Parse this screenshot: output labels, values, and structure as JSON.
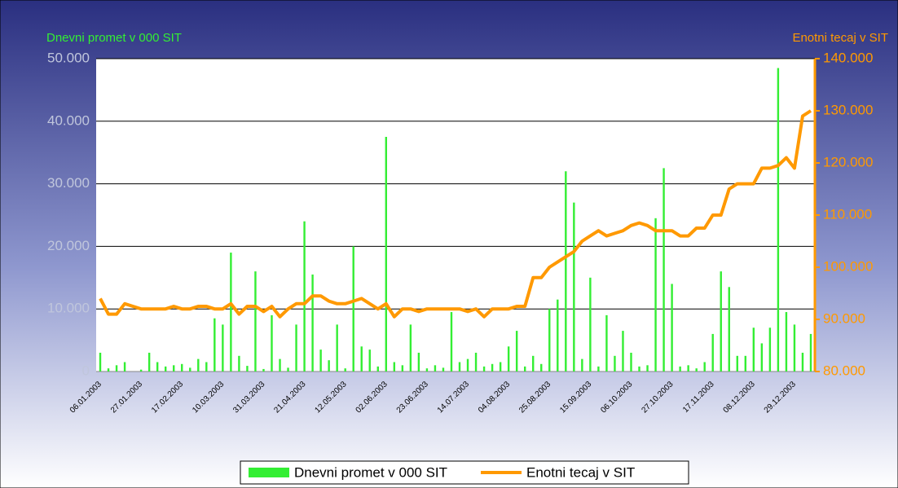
{
  "chart_data": {
    "type": "bar",
    "y_title": "Dnevni promet v 000 SIT",
    "y2_title": "Enotni tecaj v SIT",
    "categories": [
      "06.01.2003",
      null,
      null,
      null,
      null,
      "27.01.2003",
      null,
      null,
      null,
      null,
      "17.02.2003",
      null,
      null,
      null,
      null,
      "10.03.2003",
      null,
      null,
      null,
      null,
      "31.03.2003",
      null,
      null,
      null,
      null,
      "21.04.2003",
      null,
      null,
      null,
      null,
      "12.05.2003",
      null,
      null,
      null,
      null,
      "02.06.2003",
      null,
      null,
      null,
      null,
      "23.06.2003",
      null,
      null,
      null,
      null,
      "14.07.2003",
      null,
      null,
      null,
      null,
      "04.08.2003",
      null,
      null,
      null,
      null,
      "25.08.2003",
      null,
      null,
      null,
      null,
      "15.09.2003",
      null,
      null,
      null,
      null,
      "06.10.2003",
      null,
      null,
      null,
      null,
      "27.10.2003",
      null,
      null,
      null,
      null,
      "17.11.2003",
      null,
      null,
      null,
      null,
      "08.12.2003",
      null,
      null,
      null,
      null,
      "29.12.2003",
      null,
      null
    ],
    "series": [
      {
        "name": "Dnevni promet v 000 SIT",
        "type": "bar",
        "color": "#33ee33",
        "values": [
          3000,
          500,
          1000,
          1500,
          0,
          300,
          3000,
          1500,
          800,
          1000,
          1200,
          600,
          2000,
          1500,
          8500,
          7500,
          19000,
          2500,
          900,
          16000,
          400,
          9000,
          2000,
          600,
          7500,
          24000,
          15500,
          3500,
          1800,
          7500,
          500,
          20000,
          4000,
          3500,
          800,
          37500,
          1500,
          1000,
          7500,
          3000,
          500,
          1000,
          600,
          9500,
          1500,
          2000,
          3000,
          800,
          1200,
          1500,
          4000,
          6500,
          800,
          2500,
          1200,
          10000,
          11500,
          32000,
          27000,
          2000,
          15000,
          800,
          9000,
          2500,
          6500,
          3000,
          800,
          1000,
          24500,
          32500,
          14000,
          800,
          1000,
          500,
          1500,
          6000,
          16000,
          13500,
          2500,
          2500,
          7000,
          4500,
          7000,
          48500,
          9500,
          7500,
          3000,
          6000
        ]
      },
      {
        "name": "Enotni tecaj v SIT",
        "type": "line",
        "axis": "y2",
        "color": "#ff9900",
        "values": [
          94000,
          91000,
          91000,
          93000,
          92500,
          92000,
          92000,
          92000,
          92000,
          92500,
          92000,
          92000,
          92500,
          92500,
          92000,
          92000,
          93000,
          91000,
          92500,
          92500,
          91500,
          92500,
          90500,
          92000,
          93000,
          93000,
          94500,
          94500,
          93500,
          93000,
          93000,
          93500,
          94000,
          93000,
          92000,
          93000,
          90500,
          92000,
          92000,
          91500,
          92000,
          92000,
          92000,
          92000,
          92000,
          91500,
          92000,
          90500,
          92000,
          92000,
          92000,
          92500,
          92500,
          98000,
          98000,
          100000,
          101000,
          102000,
          103000,
          105000,
          106000,
          107000,
          106000,
          106500,
          107000,
          108000,
          108500,
          108000,
          107000,
          107000,
          107000,
          106000,
          106000,
          107500,
          107500,
          110000,
          110000,
          115000,
          116000,
          116000,
          116000,
          119000,
          119000,
          119500,
          121000,
          119000,
          129000,
          130000
        ]
      }
    ],
    "ylim": [
      0,
      50000
    ],
    "yticks": [
      0,
      {
        "value": 10000,
        "label": "10.000"
      },
      {
        "value": 20000,
        "label": "20.000"
      },
      {
        "value": 30000,
        "label": "30.000"
      },
      {
        "value": 40000,
        "label": "40.000"
      },
      {
        "value": 50000,
        "label": "50.000"
      }
    ],
    "y2lim": [
      80000,
      140000
    ],
    "y2ticks": [
      {
        "value": 80000,
        "label": "80.000"
      },
      {
        "value": 90000,
        "label": "90.000"
      },
      {
        "value": 100000,
        "label": "100.000"
      },
      {
        "value": 110000,
        "label": "110.000"
      },
      {
        "value": 120000,
        "label": "120.000"
      },
      {
        "value": 130000,
        "label": "130.000"
      },
      {
        "value": 140000,
        "label": "140.000"
      }
    ],
    "grid": true,
    "legend": "bottom"
  }
}
